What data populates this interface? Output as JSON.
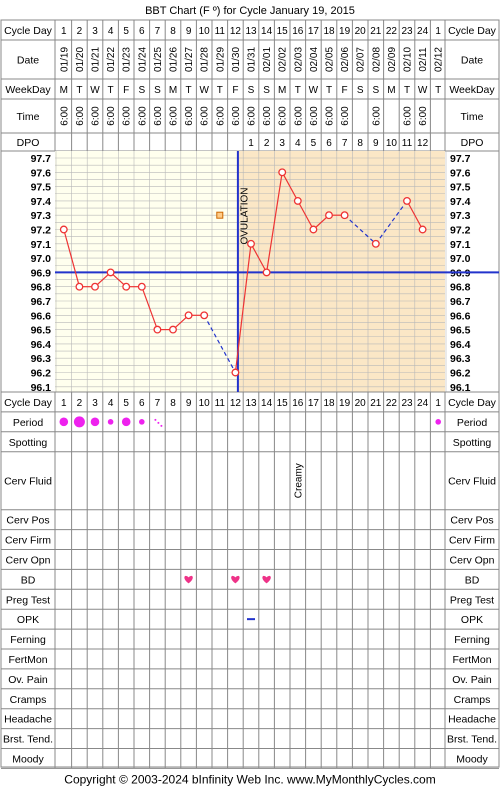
{
  "title": "BBT Chart (F º) for Cycle January 19, 2015",
  "copyright": "Copyright © 2003-2024 bInfinity Web Inc.     www.MyMonthlyCycles.com",
  "colors": {
    "post_ovulation_bg": "#fbe7c6",
    "pre_ovulation_bg": "#ffffee",
    "grid": "#b8b8b8",
    "temp_line": "#ee3333",
    "coverline": "#2233cc",
    "ovulation_line": "#2233cc",
    "period_dot": "#ee22ee",
    "bd_heart": "#ee3388",
    "opk_dash": "#2233cc"
  },
  "labels": {
    "cycle_day": "Cycle Day",
    "date": "Date",
    "weekday": "WeekDay",
    "time": "Time",
    "dpo": "DPO",
    "ovulation": "OVULATION"
  },
  "header": {
    "cycle_days": [
      "1",
      "2",
      "3",
      "4",
      "5",
      "6",
      "7",
      "8",
      "9",
      "10",
      "11",
      "12",
      "13",
      "14",
      "15",
      "16",
      "17",
      "18",
      "19",
      "20",
      "21",
      "22",
      "23",
      "24",
      "1"
    ],
    "dates": [
      "01/19",
      "01/20",
      "01/21",
      "01/22",
      "01/23",
      "01/24",
      "01/25",
      "01/26",
      "01/27",
      "01/28",
      "01/29",
      "01/30",
      "01/31",
      "02/01",
      "02/02",
      "02/03",
      "02/04",
      "02/05",
      "02/06",
      "02/07",
      "02/08",
      "02/09",
      "02/10",
      "02/11",
      "02/12"
    ],
    "weekdays": [
      "M",
      "T",
      "W",
      "T",
      "F",
      "S",
      "S",
      "M",
      "T",
      "W",
      "T",
      "F",
      "S",
      "S",
      "M",
      "T",
      "W",
      "T",
      "F",
      "S",
      "S",
      "M",
      "T",
      "W",
      "T"
    ],
    "times": [
      "6:00",
      "6:00",
      "6:00",
      "6:00",
      "6:00",
      "6:00",
      "6:00",
      "6:00",
      "6:00",
      "6:00",
      "6:00",
      "6:00",
      "6:00",
      "6:00",
      "6:00",
      "6:00",
      "6:00",
      "6:00",
      "6:00",
      "",
      "6:00",
      "",
      "6:00",
      "6:00",
      ""
    ],
    "dpo": [
      "",
      "",
      "",
      "",
      "",
      "",
      "",
      "",
      "",
      "",
      "",
      "",
      "1",
      "2",
      "3",
      "4",
      "5",
      "6",
      "7",
      "8",
      "9",
      "10",
      "11",
      "12",
      ""
    ]
  },
  "chart_data": {
    "type": "line",
    "title": "BBT Chart (F º) for Cycle January 19, 2015",
    "x": [
      1,
      2,
      3,
      4,
      5,
      6,
      7,
      8,
      9,
      10,
      11,
      12,
      13,
      14,
      15,
      16,
      17,
      18,
      19,
      20,
      21,
      22,
      23,
      24,
      25
    ],
    "y_ticks": [
      "97.7",
      "97.6",
      "97.5",
      "97.4",
      "97.3",
      "97.2",
      "97.1",
      "97.0",
      "96.9",
      "96.8",
      "96.7",
      "96.6",
      "96.5",
      "96.4",
      "96.3",
      "96.2",
      "96.1"
    ],
    "ylim": [
      96.1,
      97.7
    ],
    "series": [
      {
        "values": [
          97.2,
          96.8,
          96.8,
          96.9,
          96.8,
          96.8,
          96.5,
          96.5,
          96.6,
          96.6,
          null,
          96.2,
          97.1,
          96.9,
          97.6,
          97.4,
          97.2,
          97.3,
          97.3,
          null,
          97.1,
          null,
          97.4,
          97.2,
          null
        ]
      }
    ],
    "coverline": 96.9,
    "ovulation_day": 12,
    "fertile_marker": {
      "day": 11,
      "value": 97.3
    },
    "grid": true
  },
  "sections": [
    {
      "label": "Cycle Day",
      "type": "numbers"
    },
    {
      "label": "Period",
      "type": "period"
    },
    {
      "label": "Spotting",
      "type": "empty"
    },
    {
      "label": "Cerv Fluid",
      "type": "text",
      "entries": [
        {
          "day": 16,
          "text": "Creamy"
        }
      ]
    },
    {
      "label": "Cerv Pos",
      "type": "empty"
    },
    {
      "label": "Cerv Firm",
      "type": "empty"
    },
    {
      "label": "Cerv Opn",
      "type": "empty"
    },
    {
      "label": "BD",
      "type": "bd"
    },
    {
      "label": "Preg Test",
      "type": "empty"
    },
    {
      "label": "OPK",
      "type": "opk"
    },
    {
      "label": "Ferning",
      "type": "empty"
    },
    {
      "label": "FertMon",
      "type": "empty"
    },
    {
      "label": "Ov. Pain",
      "type": "empty"
    },
    {
      "label": "Cramps",
      "type": "empty"
    },
    {
      "label": "Headache",
      "type": "empty"
    },
    {
      "label": "Brst. Tend.",
      "type": "empty"
    },
    {
      "label": "Moody",
      "type": "empty"
    }
  ],
  "period": [
    {
      "day": 1,
      "level": "medium"
    },
    {
      "day": 2,
      "level": "heavy"
    },
    {
      "day": 3,
      "level": "medium"
    },
    {
      "day": 4,
      "level": "light"
    },
    {
      "day": 5,
      "level": "medium"
    },
    {
      "day": 6,
      "level": "light"
    },
    {
      "day": 7,
      "level": "spot"
    },
    {
      "day": 25,
      "level": "light"
    }
  ],
  "bd_days": [
    9,
    12,
    14
  ],
  "opk_days": [
    13
  ]
}
